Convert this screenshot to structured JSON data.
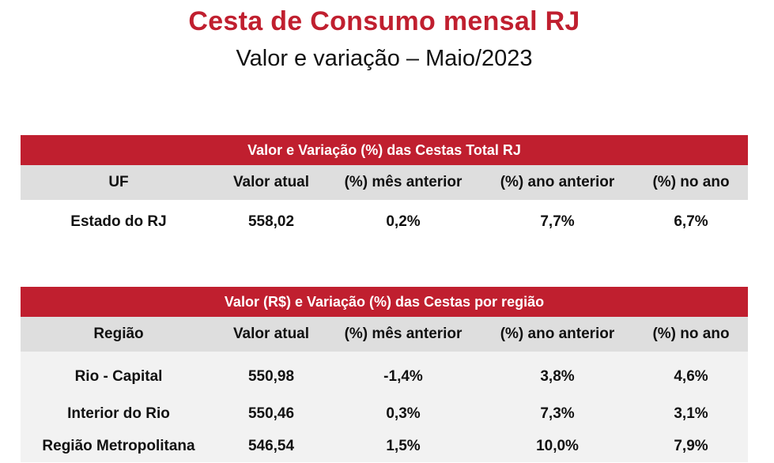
{
  "header": {
    "title": "Cesta de Consumo mensal RJ",
    "subtitle": "Valor e variação – Maio/2023"
  },
  "table_total": {
    "banner": "Valor e Variação (%) das Cestas Total RJ",
    "columns": [
      "UF",
      "Valor atual",
      "(%) mês anterior",
      "(%) ano anterior",
      "(%) no ano"
    ],
    "rows": [
      [
        "Estado do RJ",
        "558,02",
        "0,2%",
        "7,7%",
        "6,7%"
      ]
    ]
  },
  "table_regions": {
    "banner": "Valor (R$) e Variação (%) das Cestas por região",
    "columns": [
      "Região",
      "Valor atual",
      "(%) mês anterior",
      "(%) ano anterior",
      "(%) no ano"
    ],
    "rows": [
      [
        "Rio - Capital",
        "550,98",
        "-1,4%",
        "3,8%",
        "4,6%"
      ],
      [
        "Interior do Rio",
        "550,46",
        "0,3%",
        "7,3%",
        "3,1%"
      ],
      [
        "Região Metropolitana",
        "546,54",
        "1,5%",
        "10,0%",
        "7,9%"
      ]
    ]
  },
  "colors": {
    "banner": "#c01f2f",
    "header_bg": "#dedede",
    "title": "#c01f2f"
  }
}
